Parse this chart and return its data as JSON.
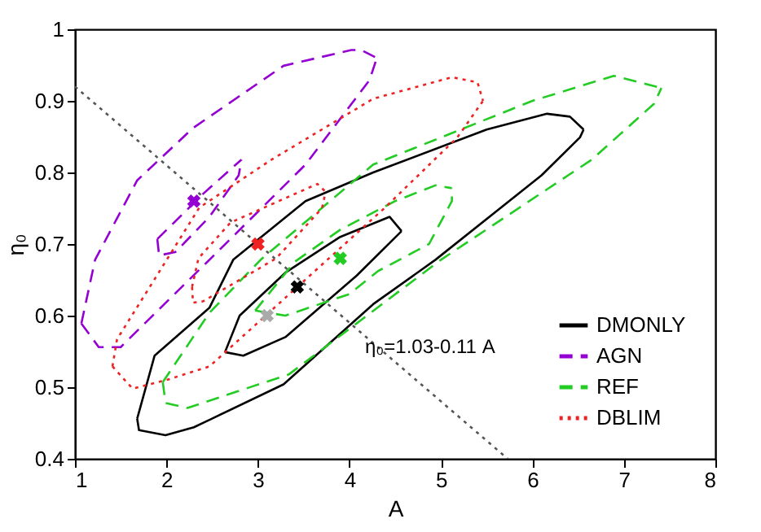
{
  "chart_data": {
    "type": "line",
    "xlabel": "A",
    "ylabel": "η₀",
    "xlim": [
      1,
      8
    ],
    "ylim": [
      0.4,
      1
    ],
    "xticks": [
      1,
      2,
      3,
      4,
      5,
      6,
      7,
      8
    ],
    "yticks": [
      0.4,
      0.5,
      0.6,
      0.7,
      0.8,
      0.9,
      {
        "value": 1,
        "label": "1"
      }
    ],
    "legend": "bottom right",
    "series": [
      {
        "name": "DMONLY",
        "color": "#000000",
        "line_style": "solid",
        "x": [
          1.68,
          1.7,
          1.99,
          2.3,
          3.28,
          4.26,
          4.94,
          6.1,
          6.52,
          6.56,
          null,
          1.68,
          1.87,
          2.47,
          2.73,
          3.52,
          4.26,
          5.5,
          6.16,
          6.41,
          6.56,
          null,
          2.64,
          2.84,
          3.3,
          4.08,
          4.57,
          null,
          2.64,
          2.8,
          3.3,
          3.9,
          4.44,
          4.57
        ],
        "values": [
          0.456,
          0.44,
          0.433,
          0.444,
          0.504,
          0.616,
          0.678,
          0.796,
          0.849,
          0.86,
          null,
          0.456,
          0.544,
          0.611,
          0.678,
          0.76,
          0.8,
          0.86,
          0.882,
          0.878,
          0.86,
          null,
          0.549,
          0.544,
          0.57,
          0.656,
          0.718,
          null,
          0.549,
          0.6,
          0.66,
          0.71,
          0.738,
          0.718
        ]
      },
      {
        "name": "AGN",
        "color": "#9400d3",
        "line_style": "dashed",
        "x": [
          1.07,
          1.26,
          1.5,
          2.47,
          3.52,
          4.22,
          4.3,
          null,
          1.07,
          1.22,
          1.68,
          2.29,
          3.28,
          4.02,
          4.13,
          4.3,
          null,
          1.9,
          1.92,
          2.1,
          2.47,
          2.79,
          2.82,
          null,
          1.9,
          2.4,
          2.82
        ],
        "values": [
          0.589,
          0.556,
          0.556,
          0.678,
          0.811,
          0.929,
          0.96,
          null,
          0.589,
          0.678,
          0.789,
          0.862,
          0.949,
          0.971,
          0.971,
          0.96,
          null,
          0.707,
          0.684,
          0.689,
          0.738,
          0.796,
          0.818,
          null,
          0.707,
          0.77,
          0.818
        ]
      },
      {
        "name": "REF",
        "color": "#22cc22",
        "line_style": "dashed",
        "x": [
          1.96,
          1.99,
          2.23,
          3.34,
          5.0,
          6.65,
          7.33,
          7.41,
          null,
          1.96,
          2.47,
          3.03,
          4.26,
          6.0,
          6.89,
          7.41,
          null,
          2.97,
          3.3,
          4.0,
          4.31,
          4.87,
          5.12,
          5.12,
          null,
          2.97,
          3.4,
          3.9,
          4.5,
          4.94,
          5.12
        ],
        "values": [
          0.507,
          0.478,
          0.471,
          0.518,
          0.678,
          0.818,
          0.896,
          0.918,
          null,
          0.507,
          0.604,
          0.678,
          0.811,
          0.9,
          0.935,
          0.918,
          null,
          0.607,
          0.6,
          0.63,
          0.662,
          0.7,
          0.76,
          0.778,
          null,
          0.607,
          0.675,
          0.72,
          0.76,
          0.782,
          0.778
        ]
      },
      {
        "name": "DBLIM",
        "color": "#ee2222",
        "line_style": "dotted",
        "x": [
          1.41,
          1.63,
          2.0,
          2.47,
          4.39,
          5.18,
          5.46,
          null,
          1.41,
          1.46,
          2.36,
          3.15,
          4.26,
          5.12,
          5.4,
          5.46,
          null,
          2.28,
          2.29,
          2.4,
          3.2,
          3.7,
          3.74,
          null,
          2.28,
          2.35,
          2.7,
          3.65,
          3.74
        ],
        "values": [
          0.529,
          0.498,
          0.51,
          0.529,
          0.751,
          0.849,
          0.9,
          null,
          0.529,
          0.567,
          0.751,
          0.818,
          0.903,
          0.933,
          0.926,
          0.9,
          null,
          0.64,
          0.618,
          0.62,
          0.68,
          0.75,
          0.773,
          null,
          0.64,
          0.68,
          0.73,
          0.784,
          0.773
        ]
      },
      {
        "color": "#555555",
        "line_style": "dotted",
        "x": [
          1,
          5.73
        ],
        "values": [
          0.92,
          0.4
        ]
      },
      {
        "type": "scatter",
        "color": "#000000",
        "marker": "cross",
        "x": [
          3.43
        ],
        "values": [
          0.64
        ]
      },
      {
        "type": "scatter",
        "color": "#9400d3",
        "marker": "cross",
        "x": [
          2.3
        ],
        "values": [
          0.76
        ]
      },
      {
        "type": "scatter",
        "color": "#22cc22",
        "marker": "cross",
        "x": [
          3.9
        ],
        "values": [
          0.68
        ]
      },
      {
        "type": "scatter",
        "color": "#ee2222",
        "marker": "cross",
        "x": [
          3.0
        ],
        "values": [
          0.7
        ]
      },
      {
        "type": "scatter",
        "color": "#aaaaaa",
        "marker": "cross",
        "x": [
          3.1
        ],
        "values": [
          0.6
        ]
      }
    ],
    "annotations": [
      "η₀=1.03-0.11 A"
    ]
  }
}
